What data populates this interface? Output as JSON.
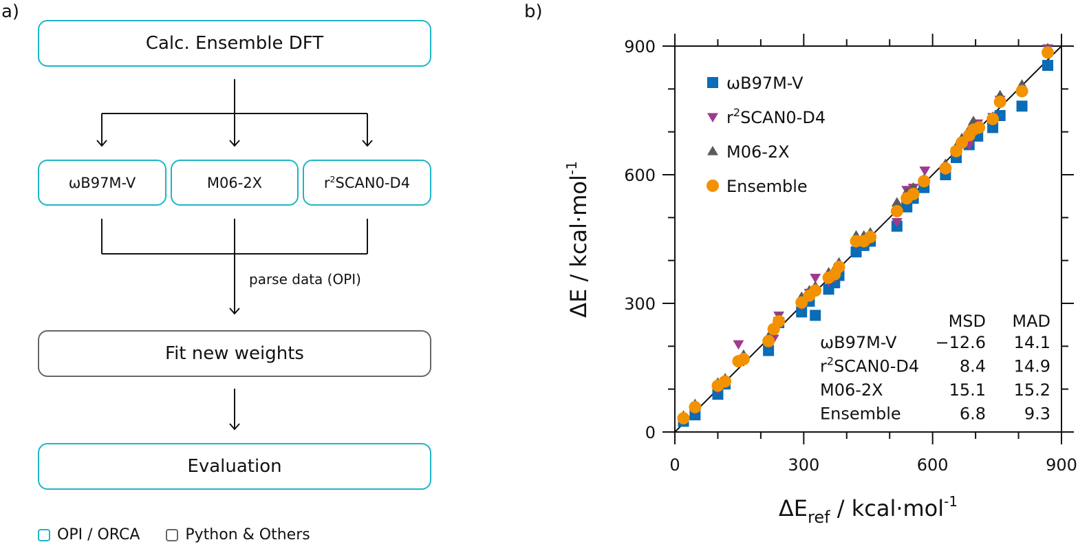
{
  "panel_a": {
    "label": "a)",
    "top_box": "Calc. Ensemble DFT",
    "methods": [
      {
        "name": "ωB97M-V"
      },
      {
        "name": "M06-2X"
      },
      {
        "name_prefix": "r",
        "name_sup": "2",
        "name_suffix": "SCAN0-D4"
      }
    ],
    "parse_label": "parse data (OPI)",
    "fit_box": "Fit new weights",
    "eval_box": "Evaluation",
    "legend": [
      {
        "label": "OPI / ORCA",
        "color": "#1cb5c7"
      },
      {
        "label": "Python & Others",
        "color": "#666666"
      }
    ]
  },
  "panel_b": {
    "label": "b)"
  },
  "chart_data": {
    "type": "scatter",
    "title": "",
    "xlabel": "ΔE_ref / kcal·mol^-1",
    "xlabel_main": "ΔE",
    "xlabel_sub": "ref",
    "xlabel_rest": " / kcal·mol",
    "xlabel_sup": "-1",
    "ylabel_main": "ΔE / kcal·mol",
    "ylabel_sup": "-1",
    "xlim": [
      0,
      900
    ],
    "ylim": [
      0,
      900
    ],
    "xticks": [
      0,
      300,
      600,
      900
    ],
    "yticks": [
      0,
      300,
      600,
      900
    ],
    "minor_tick_step": 100,
    "grid": false,
    "legend_position": "top-left",
    "reference_line": "y = x",
    "series": [
      {
        "name": "ωB97M-V",
        "marker": "square",
        "color": "#0a6cb5",
        "points": [
          [
            20,
            25
          ],
          [
            47,
            40
          ],
          [
            100,
            88
          ],
          [
            117,
            112
          ],
          [
            218,
            190
          ],
          [
            242,
            255
          ],
          [
            295,
            280
          ],
          [
            313,
            305
          ],
          [
            327,
            272
          ],
          [
            358,
            333
          ],
          [
            372,
            348
          ],
          [
            382,
            365
          ],
          [
            422,
            420
          ],
          [
            440,
            435
          ],
          [
            455,
            445
          ],
          [
            517,
            480
          ],
          [
            540,
            525
          ],
          [
            555,
            545
          ],
          [
            580,
            570
          ],
          [
            630,
            600
          ],
          [
            655,
            640
          ],
          [
            685,
            670
          ],
          [
            705,
            690
          ],
          [
            740,
            710
          ],
          [
            757,
            738
          ],
          [
            808,
            760
          ],
          [
            868,
            855
          ]
        ]
      },
      {
        "name": "r²SCAN0-D4",
        "label_prefix": "r",
        "label_sup": "2",
        "label_suffix": "SCAN0-D4",
        "marker": "triangle-down",
        "color": "#a03a8f",
        "points": [
          [
            20,
            30
          ],
          [
            47,
            52
          ],
          [
            100,
            100
          ],
          [
            117,
            118
          ],
          [
            148,
            205
          ],
          [
            160,
            165
          ],
          [
            218,
            210
          ],
          [
            230,
            218
          ],
          [
            242,
            272
          ],
          [
            295,
            295
          ],
          [
            313,
            325
          ],
          [
            327,
            360
          ],
          [
            358,
            350
          ],
          [
            372,
            360
          ],
          [
            382,
            380
          ],
          [
            422,
            440
          ],
          [
            440,
            440
          ],
          [
            455,
            450
          ],
          [
            517,
            490
          ],
          [
            540,
            565
          ],
          [
            555,
            570
          ],
          [
            582,
            610
          ],
          [
            630,
            610
          ],
          [
            655,
            655
          ],
          [
            685,
            670
          ],
          [
            705,
            720
          ],
          [
            740,
            735
          ],
          [
            757,
            775
          ],
          [
            868,
            895
          ]
        ]
      },
      {
        "name": "M06-2X",
        "marker": "triangle-up",
        "color": "#5a5a5a",
        "points": [
          [
            20,
            38
          ],
          [
            47,
            65
          ],
          [
            100,
            115
          ],
          [
            117,
            125
          ],
          [
            160,
            180
          ],
          [
            218,
            222
          ],
          [
            242,
            268
          ],
          [
            295,
            315
          ],
          [
            313,
            330
          ],
          [
            327,
            340
          ],
          [
            358,
            372
          ],
          [
            372,
            380
          ],
          [
            382,
            395
          ],
          [
            422,
            458
          ],
          [
            440,
            458
          ],
          [
            455,
            465
          ],
          [
            517,
            535
          ],
          [
            540,
            560
          ],
          [
            555,
            570
          ],
          [
            580,
            590
          ],
          [
            630,
            625
          ],
          [
            655,
            665
          ],
          [
            668,
            685
          ],
          [
            685,
            705
          ],
          [
            695,
            725
          ],
          [
            740,
            735
          ],
          [
            757,
            785
          ],
          [
            808,
            810
          ],
          [
            868,
            895
          ]
        ]
      },
      {
        "name": "Ensemble",
        "marker": "circle",
        "color": "#f39200",
        "points": [
          [
            20,
            32
          ],
          [
            47,
            58
          ],
          [
            100,
            108
          ],
          [
            117,
            118
          ],
          [
            148,
            165
          ],
          [
            160,
            170
          ],
          [
            218,
            212
          ],
          [
            230,
            240
          ],
          [
            242,
            258
          ],
          [
            295,
            302
          ],
          [
            313,
            318
          ],
          [
            327,
            330
          ],
          [
            358,
            360
          ],
          [
            372,
            368
          ],
          [
            382,
            385
          ],
          [
            422,
            445
          ],
          [
            440,
            445
          ],
          [
            455,
            455
          ],
          [
            517,
            515
          ],
          [
            540,
            545
          ],
          [
            555,
            555
          ],
          [
            580,
            585
          ],
          [
            630,
            615
          ],
          [
            655,
            655
          ],
          [
            668,
            675
          ],
          [
            685,
            692
          ],
          [
            695,
            705
          ],
          [
            708,
            710
          ],
          [
            740,
            730
          ],
          [
            757,
            770
          ],
          [
            808,
            795
          ],
          [
            868,
            885
          ]
        ]
      }
    ],
    "stats_table": {
      "headers": [
        "",
        "MSD",
        "MAD"
      ],
      "rows": [
        {
          "method": "ωB97M-V",
          "msd": "−12.6",
          "mad": "14.1"
        },
        {
          "method_prefix": "r",
          "method_sup": "2",
          "method_suffix": "SCAN0-D4",
          "msd": "8.4",
          "mad": "14.9"
        },
        {
          "method": "M06-2X",
          "msd": "15.1",
          "mad": "15.2"
        },
        {
          "method": "Ensemble",
          "msd": "6.8",
          "mad": "9.3"
        }
      ]
    }
  }
}
